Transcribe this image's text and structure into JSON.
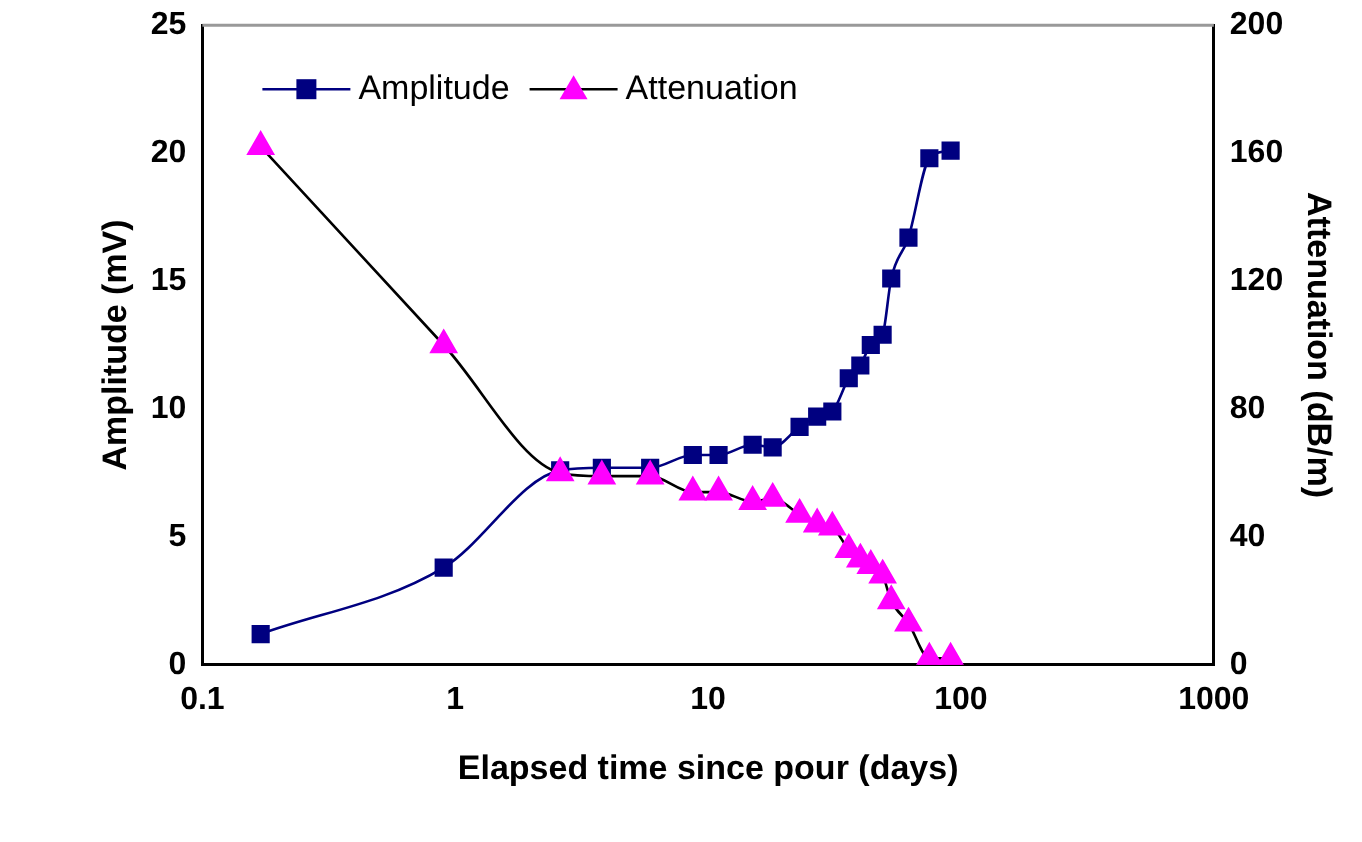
{
  "chart_data": {
    "type": "line",
    "xlabel": "Elapsed time since pour (days)",
    "ylabel": "Amplitude (mV)",
    "y2label": "Attenuation (dB/m)",
    "x": [
      0.17,
      0.9,
      2.6,
      3.8,
      5.9,
      8.7,
      11,
      15,
      18,
      23,
      27,
      31,
      36,
      40,
      44,
      49,
      53,
      62,
      75,
      91
    ],
    "series": [
      {
        "name": "Amplitude",
        "color": "#000080",
        "marker": "square",
        "values": [
          1.2,
          3.8,
          7.6,
          7.7,
          7.7,
          8.2,
          8.2,
          8.6,
          8.5,
          9.3,
          9.7,
          9.9,
          11.2,
          11.7,
          12.5,
          12.9,
          15.1,
          16.7,
          19.8,
          20.1
        ]
      },
      {
        "name": "Attenuation",
        "color": "#ff00ff",
        "marker": "triangle",
        "axis": "y2",
        "values": [
          162,
          100,
          60,
          59,
          59,
          54,
          54,
          51,
          52,
          47,
          44,
          43,
          36,
          33,
          31,
          28,
          20,
          13,
          2,
          2
        ]
      }
    ],
    "log": "x",
    "xlim": [
      0.1,
      1000
    ],
    "xticks": [
      0.1,
      1,
      10,
      100,
      1000
    ],
    "ylim": [
      0,
      25
    ],
    "yticks": [
      0,
      5,
      10,
      15,
      20,
      25
    ],
    "y2lim": [
      0,
      200
    ],
    "y2ticks": [
      0,
      40,
      80,
      120,
      160,
      200
    ],
    "grid": false,
    "legend": "top left",
    "line_style": "solid"
  }
}
